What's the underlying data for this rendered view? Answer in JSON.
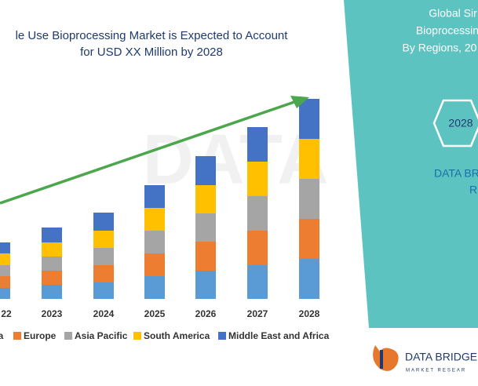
{
  "chart_data": {
    "type": "stacked_bar",
    "title": [
      "le Use Bioprocessing Market is Expected to Account",
      "for USD XX Million by 2028"
    ],
    "categories": [
      "22",
      "2023",
      "2024",
      "2025",
      "2026",
      "2027",
      "2028"
    ],
    "series": [
      {
        "name": "ca",
        "color": "#5b9bd5",
        "values": [
          14,
          18,
          21,
          29,
          36,
          43,
          51
        ]
      },
      {
        "name": "Europe",
        "color": "#ed7d31",
        "values": [
          15,
          18,
          22,
          29,
          37,
          44,
          51
        ]
      },
      {
        "name": "Asia Pacific",
        "color": "#a5a5a5",
        "values": [
          14,
          18,
          22,
          29,
          36,
          44,
          51
        ]
      },
      {
        "name": "South America",
        "color": "#ffc000",
        "values": [
          15,
          18,
          22,
          29,
          36,
          44,
          51
        ]
      },
      {
        "name": "Middle East and Africa",
        "color": "#4472c4",
        "values": [
          14,
          19,
          23,
          29,
          37,
          44,
          51
        ]
      }
    ],
    "ylim": [
      0,
      255
    ]
  },
  "panel": {
    "heading": [
      "Global Sir",
      "Bioprocessin",
      "By Regions, 20"
    ],
    "year": "2028",
    "brand": [
      "DATA BR",
      "R"
    ],
    "logo": {
      "name": "DATA BRIDGE",
      "tagline": "MARKET RESEAR"
    }
  }
}
